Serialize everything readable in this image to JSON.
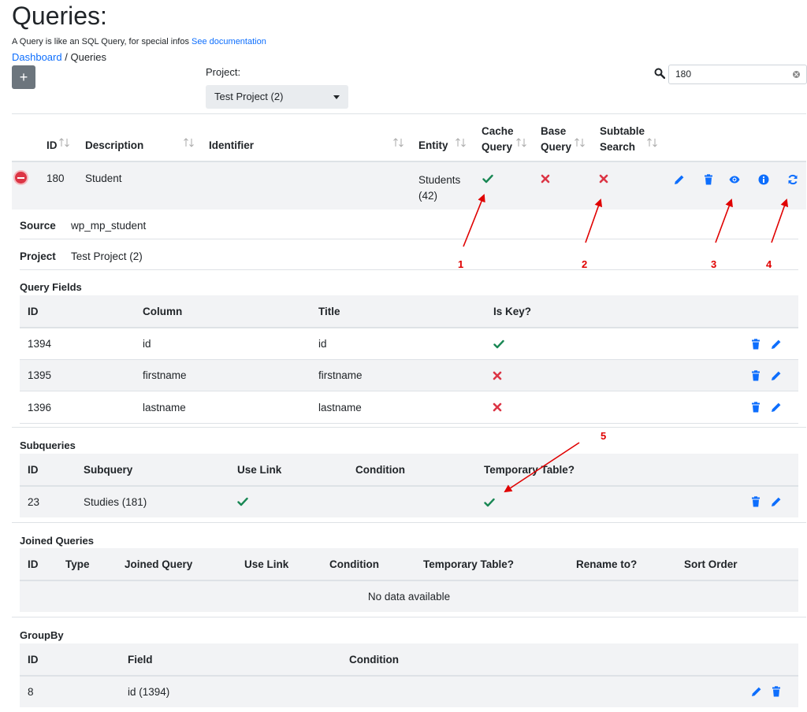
{
  "header": {
    "title": "Queries:",
    "subtitle": "A Query is like an SQL Query, for special infos",
    "doc_link": "See documentation",
    "breadcrumb_home": "Dashboard",
    "breadcrumb_sep": "/",
    "breadcrumb_current": "Queries",
    "add_label": "+",
    "project_label": "Project:",
    "project_value": "Test Project (2)",
    "search_value": "180"
  },
  "main_table": {
    "columns": {
      "id": "ID",
      "description": "Description",
      "identifier": "Identifier",
      "entity": "Entity",
      "cache1": "Cache",
      "cache2": "Query",
      "base1": "Base",
      "base2": "Query",
      "subtable1": "Subtable",
      "subtable2": "Search"
    },
    "row": {
      "id": "180",
      "description": "Student",
      "entity1": "Students",
      "entity2": "(42)"
    }
  },
  "details": {
    "source_label": "Source",
    "source_value": "wp_mp_student",
    "project_label": "Project",
    "project_value": "Test Project (2)"
  },
  "query_fields": {
    "title": "Query Fields",
    "columns": [
      "ID",
      "Column",
      "Title",
      "Is Key?"
    ],
    "rows": [
      {
        "id": "1394",
        "column": "id",
        "title": "id"
      },
      {
        "id": "1395",
        "column": "firstname",
        "title": "firstname"
      },
      {
        "id": "1396",
        "column": "lastname",
        "title": "lastname"
      }
    ]
  },
  "subqueries": {
    "title": "Subqueries",
    "columns": [
      "ID",
      "Subquery",
      "Use Link",
      "Condition",
      "Temporary Table?"
    ],
    "rows": [
      {
        "id": "23",
        "subquery": "Studies (181)"
      }
    ]
  },
  "joined": {
    "title": "Joined Queries",
    "columns": [
      "ID",
      "Type",
      "Joined Query",
      "Use Link",
      "Condition",
      "Temporary Table?",
      "Rename to?",
      "Sort Order"
    ],
    "empty": "No data available"
  },
  "groupby": {
    "title": "GroupBy",
    "columns": [
      "ID",
      "Field",
      "Condition"
    ],
    "rows": [
      {
        "id": "8",
        "field": "id (1394)"
      }
    ]
  },
  "annotations": [
    "1",
    "2",
    "3",
    "4",
    "5"
  ],
  "colors": {
    "accent": "#0d6efd",
    "check": "#198754",
    "cross": "#dc3545",
    "annotation": "#e00000"
  }
}
